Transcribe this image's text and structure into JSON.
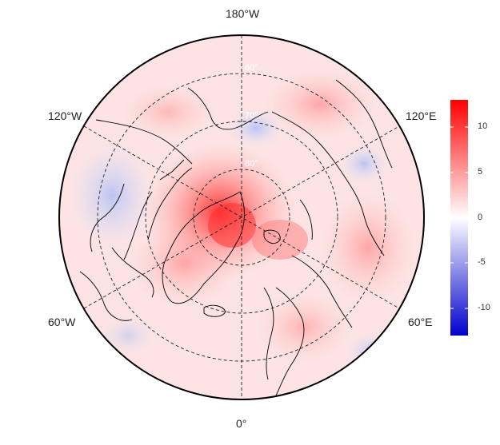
{
  "map": {
    "projection": "north polar stereographic",
    "longitude_labels": {
      "top": "180°W",
      "bottom": "0°",
      "upper_left": "120°W",
      "upper_right": "120°E",
      "lower_left": "60°W",
      "lower_right": "60°E"
    },
    "latitude_rings": [
      "60°",
      "70°",
      "80°"
    ],
    "colormap": {
      "low": "#0000cc",
      "mid": "#ffffff",
      "high": "#ff0000"
    }
  },
  "colorbar": {
    "ticks": [
      "10",
      "5",
      "0",
      "-5",
      "-10"
    ],
    "range": [
      -13,
      13
    ]
  }
}
